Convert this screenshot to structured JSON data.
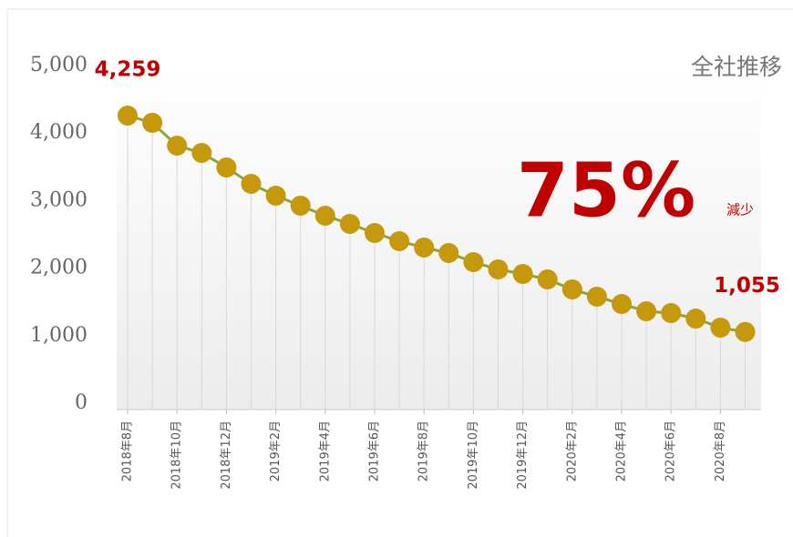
{
  "chart_data": {
    "type": "line",
    "title": "全社推移",
    "annotations": [
      "75%",
      "減少"
    ],
    "categories": [
      "2018年8月",
      null,
      "2018年10月",
      null,
      "2018年12月",
      null,
      "2019年2月",
      null,
      "2019年4月",
      null,
      "2019年6月",
      null,
      "2019年8月",
      null,
      "2019年10月",
      null,
      "2019年12月",
      null,
      "2020年2月",
      null,
      "2020年4月",
      null,
      "2020年6月",
      null,
      "2020年8月",
      null
    ],
    "series": [
      {
        "name": "全社",
        "line_color": "#8aa53a",
        "color": "#c6980b",
        "values": [
          4259,
          4152,
          3814,
          3706,
          3490,
          3248,
          3073,
          2925,
          2776,
          2655,
          2520,
          2399,
          2305,
          2224,
          2089,
          1981,
          1914,
          1833,
          1685,
          1577,
          1469,
          1361,
          1334,
          1253,
          1119,
          1055
        ],
        "value_labels": [
          "4,259",
          null,
          null,
          null,
          null,
          null,
          null,
          null,
          null,
          null,
          null,
          null,
          null,
          null,
          null,
          null,
          null,
          null,
          null,
          null,
          null,
          null,
          null,
          null,
          null,
          "1,055"
        ]
      }
    ],
    "ylim": [
      0,
      5000
    ],
    "yticks": [
      0,
      {
        "value": 1000,
        "label": "1,000"
      },
      {
        "value": 2000,
        "label": "2,000"
      },
      {
        "value": 3000,
        "label": "3,000"
      },
      {
        "value": 4000,
        "label": "4,000"
      },
      {
        "value": 5000,
        "label": "5,000"
      }
    ],
    "annotation_color": "#c00000"
  }
}
